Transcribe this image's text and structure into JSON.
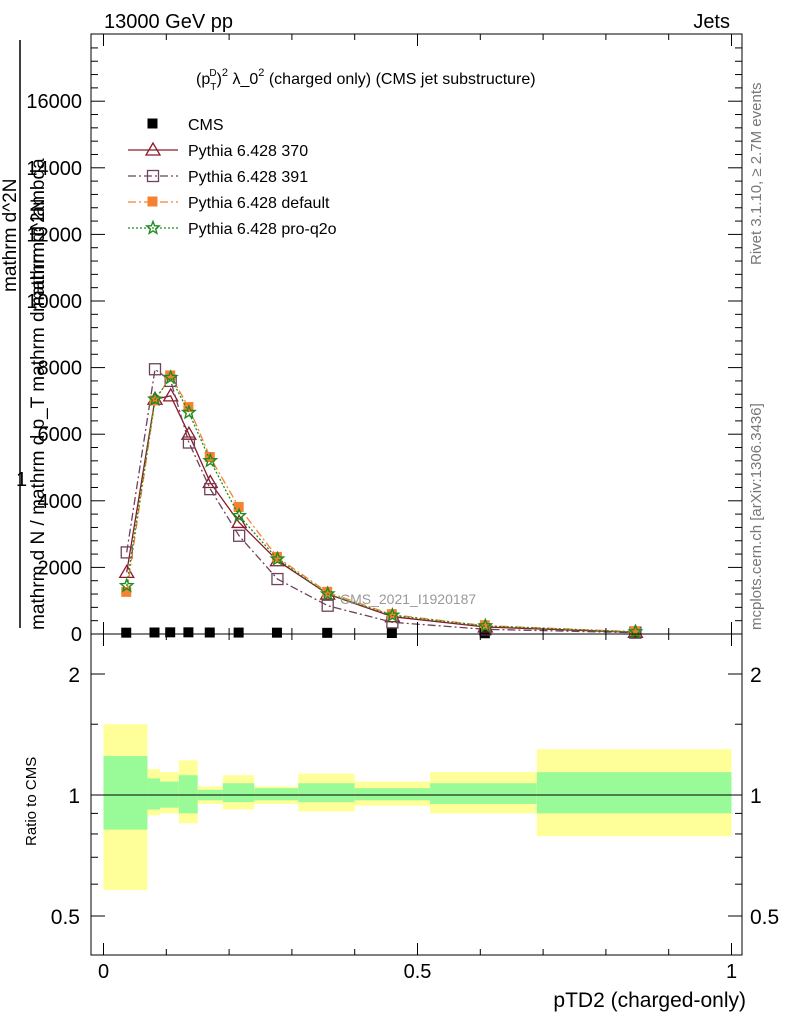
{
  "header": {
    "energy_label": "13000 GeV pp",
    "category_label": "Jets"
  },
  "side_labels": {
    "rivet": "Rivet 3.1.10, ≥ 2.7M events",
    "mcplots": "mcplots.cern.ch [arXiv:1306.3436]"
  },
  "watermark": "CMS_2021_I1920187",
  "chart_data": [
    {
      "type": "line",
      "title": "(p_T^D)^2 λ_0^2 (charged only) (CMS jet substructure)",
      "title_parts": {
        "lead": "(p",
        "sub": "T",
        "sup": "D",
        "close": ")",
        "exp": "2",
        "mid": " λ_0",
        "tail": " (charged only) (CMS jet substructure)"
      },
      "ylabel_top": "1",
      "ylabel_main": "mathrm d N / mathrm d p_T mathrm d mathrm d lambda",
      "ylabel_overlay": "mathrm d^2N",
      "ylabel_denom": "mathrm d N",
      "ylim": [
        0,
        18000
      ],
      "xlim": [
        -0.03,
        1.03
      ],
      "y_ticks": [
        0,
        2000,
        4000,
        6000,
        8000,
        10000,
        12000,
        14000,
        16000
      ],
      "y_tick_labels": [
        "0",
        "2000",
        "4000",
        "6000",
        "8000",
        "10000",
        "12000",
        "14000",
        "16000"
      ],
      "legend_position": "top-left",
      "x": [
        0.037,
        0.082,
        0.107,
        0.136,
        0.17,
        0.216,
        0.277,
        0.357,
        0.46,
        0.608,
        0.847
      ],
      "series": [
        {
          "name": "CMS",
          "color": "#000000",
          "marker": "square-filled",
          "dash": "none",
          "values": [
            25,
            30,
            35,
            35,
            30,
            28,
            25,
            20,
            15,
            8,
            3
          ]
        },
        {
          "name": "Pythia 6.428 370",
          "color": "#8b1a2b",
          "marker": "triangle-open",
          "dash": "none",
          "values": [
            1850,
            7050,
            7150,
            6000,
            4550,
            3350,
            2200,
            1200,
            520,
            210,
            50
          ]
        },
        {
          "name": "Pythia 6.428 391",
          "color": "#6e4258",
          "marker": "square-open",
          "dash": "dashdot",
          "values": [
            2450,
            7950,
            7600,
            5750,
            4350,
            2950,
            1650,
            850,
            350,
            140,
            40
          ]
        },
        {
          "name": "Pythia 6.428 default",
          "color": "#f58231",
          "marker": "square-filled",
          "dash": "dashdot",
          "values": [
            1250,
            7000,
            7750,
            6800,
            5300,
            3800,
            2300,
            1250,
            580,
            250,
            70
          ]
        },
        {
          "name": "Pythia 6.428 pro-q2o",
          "color": "#1e8c1e",
          "marker": "star",
          "dash": "dotted",
          "values": [
            1450,
            7050,
            7700,
            6650,
            5200,
            3550,
            2250,
            1200,
            560,
            240,
            60
          ]
        }
      ]
    },
    {
      "type": "area",
      "ylabel": "Ratio to CMS",
      "xlabel": "pTD2 (charged-only)",
      "ylim": [
        0.4,
        2.5
      ],
      "log_y": true,
      "xlim": [
        -0.03,
        1.03
      ],
      "y_ticks": [
        0.5,
        1,
        2
      ],
      "y_tick_labels": [
        "0.5",
        "1",
        "2"
      ],
      "x_ticks": [
        0,
        0.5,
        1
      ],
      "x_tick_labels": [
        "0",
        "0.5",
        "1"
      ],
      "reference_line": 1,
      "band_colors": {
        "inner": "#98fb98",
        "outer": "#ffff99"
      },
      "bins": [
        {
          "x0": 0.0,
          "x1": 0.07,
          "inner": [
            0.82,
            1.25
          ],
          "outer": [
            0.58,
            1.5
          ]
        },
        {
          "x0": 0.07,
          "x1": 0.09,
          "inner": [
            0.92,
            1.1
          ],
          "outer": [
            0.89,
            1.16
          ]
        },
        {
          "x0": 0.09,
          "x1": 0.12,
          "inner": [
            0.93,
            1.08
          ],
          "outer": [
            0.9,
            1.14
          ]
        },
        {
          "x0": 0.12,
          "x1": 0.15,
          "inner": [
            0.9,
            1.12
          ],
          "outer": [
            0.85,
            1.22
          ]
        },
        {
          "x0": 0.15,
          "x1": 0.19,
          "inner": [
            0.97,
            1.03
          ],
          "outer": [
            0.95,
            1.05
          ]
        },
        {
          "x0": 0.19,
          "x1": 0.24,
          "inner": [
            0.96,
            1.07
          ],
          "outer": [
            0.92,
            1.12
          ]
        },
        {
          "x0": 0.24,
          "x1": 0.31,
          "inner": [
            0.97,
            1.04
          ],
          "outer": [
            0.95,
            1.05
          ]
        },
        {
          "x0": 0.31,
          "x1": 0.4,
          "inner": [
            0.96,
            1.07
          ],
          "outer": [
            0.91,
            1.13
          ]
        },
        {
          "x0": 0.4,
          "x1": 0.52,
          "inner": [
            0.97,
            1.04
          ],
          "outer": [
            0.94,
            1.08
          ]
        },
        {
          "x0": 0.52,
          "x1": 0.69,
          "inner": [
            0.95,
            1.07
          ],
          "outer": [
            0.9,
            1.14
          ]
        },
        {
          "x0": 0.69,
          "x1": 1.0,
          "inner": [
            0.9,
            1.14
          ],
          "outer": [
            0.79,
            1.3
          ]
        }
      ]
    }
  ]
}
